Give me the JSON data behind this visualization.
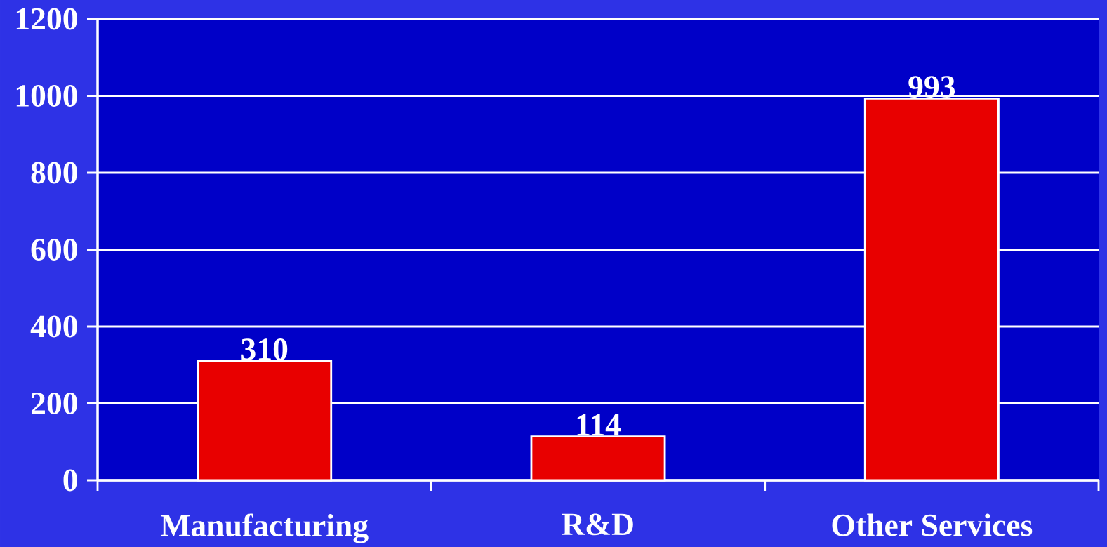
{
  "chart_data": {
    "type": "bar",
    "categories": [
      "Manufacturing",
      "R&D",
      "Other Services"
    ],
    "values": [
      310,
      114,
      993
    ],
    "color": "#e80000",
    "ylim": [
      0,
      1200
    ],
    "yticks": [
      0,
      200,
      400,
      600,
      800,
      1000,
      1200
    ],
    "grid": "y",
    "data_labels": true
  }
}
